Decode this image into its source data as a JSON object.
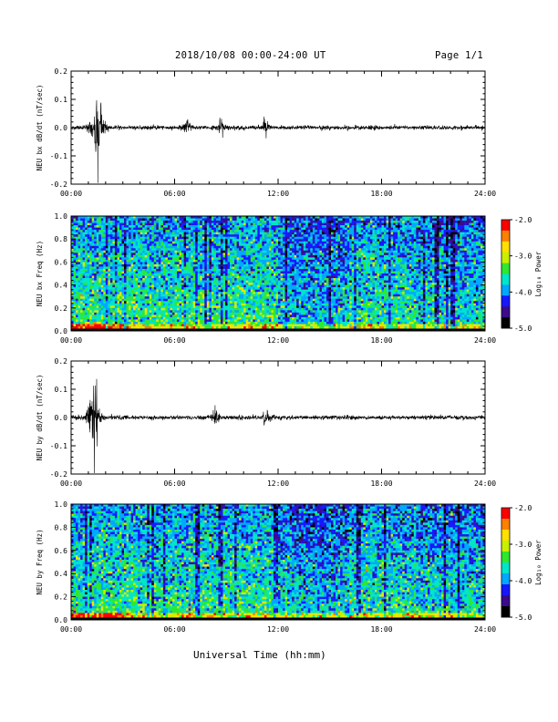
{
  "header": {
    "title": "2018/10/08  00:00-24:00 UT",
    "page": "Page 1/1"
  },
  "footer": {
    "xlabel": "Universal Time (hh:mm)"
  },
  "x_ticks": [
    "00:00",
    "06:00",
    "12:00",
    "18:00",
    "24:00"
  ],
  "colorbar": {
    "label": "Log₁₀ Power",
    "ticks": [
      "-2.0",
      "-3.0",
      "-4.0",
      "-5.0"
    ],
    "range": [
      -5.0,
      -2.0
    ],
    "colors": [
      "#000000",
      "#3a0b8c",
      "#1818ff",
      "#00a8ff",
      "#00e6c8",
      "#2ee82e",
      "#c8f000",
      "#ffe000",
      "#ff8000",
      "#ff0000"
    ]
  },
  "chart_data": [
    {
      "type": "line",
      "ylabel": "NEU bx dB/dt (nT/sec)",
      "yticks": [
        "0.2",
        "0.1",
        "0.0",
        "-0.1",
        "-0.2"
      ],
      "xlim": [
        0,
        24
      ],
      "ylim": [
        -0.2,
        0.2
      ],
      "x_unit": "hours UT",
      "bursts": [
        {
          "t": 1.5,
          "amp": 0.11
        },
        {
          "t": 6.7,
          "amp": 0.03
        },
        {
          "t": 8.7,
          "amp": 0.03
        },
        {
          "t": 11.3,
          "amp": 0.035
        }
      ],
      "baseline_noise": 0.006
    },
    {
      "type": "heatmap",
      "ylabel": "NEU bx Freq (Hz)",
      "yticks": [
        "1.0",
        "0.8",
        "0.6",
        "0.4",
        "0.2",
        "0.0"
      ],
      "xlim": [
        0,
        24
      ],
      "ylim": [
        0,
        1.0
      ],
      "zlim": [
        -5.0,
        -2.0
      ]
    },
    {
      "type": "line",
      "ylabel": "NEU by dB/dt (nT/sec)",
      "yticks": [
        "0.2",
        "0.1",
        "0.0",
        "-0.1",
        "-0.2"
      ],
      "xlim": [
        0,
        24
      ],
      "ylim": [
        -0.2,
        0.2
      ],
      "x_unit": "hours UT",
      "bursts": [
        {
          "t": 1.3,
          "amp": 0.12
        },
        {
          "t": 8.4,
          "amp": 0.035
        },
        {
          "t": 11.3,
          "amp": 0.03
        }
      ],
      "baseline_noise": 0.006
    },
    {
      "type": "heatmap",
      "ylabel": "NEU by Freq (Hz)",
      "yticks": [
        "1.0",
        "0.8",
        "0.6",
        "0.4",
        "0.2",
        "0.0"
      ],
      "xlim": [
        0,
        24
      ],
      "ylim": [
        0,
        1.0
      ],
      "zlim": [
        -5.0,
        -2.0
      ]
    }
  ]
}
